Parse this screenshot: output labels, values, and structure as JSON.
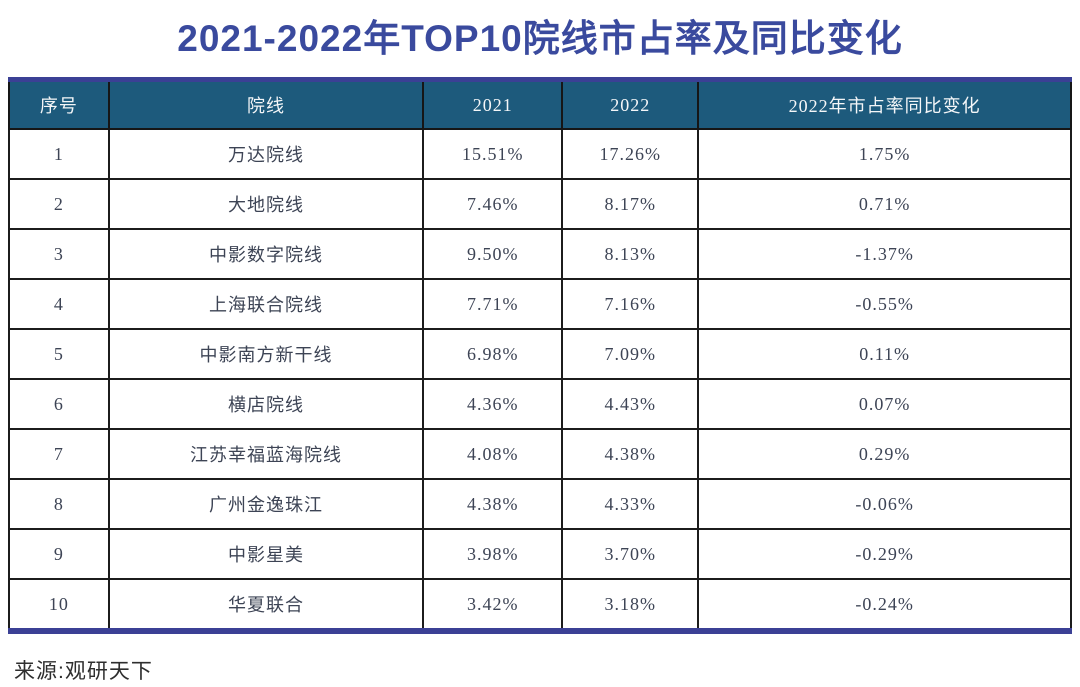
{
  "page": {
    "title": "2021-2022年TOP10院线市占率及同比变化",
    "source_label": "来源:观研天下"
  },
  "colors": {
    "title_blue": "#3a4a9e",
    "accent_navy": "#3b4095",
    "header_bg": "#1d5a7c",
    "header_text": "#f4f6f8",
    "body_text": "#3d4455",
    "grid_border": "#1c1c1c",
    "background": "#ffffff"
  },
  "chart_data": {
    "type": "table",
    "title": "2021-2022年TOP10院线市占率及同比变化",
    "columns": [
      "序号",
      "院线",
      "2021",
      "2022",
      "2022年市占率同比变化"
    ],
    "column_widths_pct": [
      9.4,
      29.6,
      13.1,
      12.8,
      35.1
    ],
    "rows": [
      [
        "1",
        "万达院线",
        "15.51%",
        "17.26%",
        "1.75%"
      ],
      [
        "2",
        "大地院线",
        "7.46%",
        "8.17%",
        "0.71%"
      ],
      [
        "3",
        "中影数字院线",
        "9.50%",
        "8.13%",
        "-1.37%"
      ],
      [
        "4",
        "上海联合院线",
        "7.71%",
        "7.16%",
        "-0.55%"
      ],
      [
        "5",
        "中影南方新干线",
        "6.98%",
        "7.09%",
        "0.11%"
      ],
      [
        "6",
        "横店院线",
        "4.36%",
        "4.43%",
        "0.07%"
      ],
      [
        "7",
        "江苏幸福蓝海院线",
        "4.08%",
        "4.38%",
        "0.29%"
      ],
      [
        "8",
        "广州金逸珠江",
        "4.38%",
        "4.33%",
        "-0.06%"
      ],
      [
        "9",
        "中影星美",
        "3.98%",
        "3.70%",
        "-0.29%"
      ],
      [
        "10",
        "华夏联合",
        "3.42%",
        "3.18%",
        "-0.24%"
      ]
    ],
    "source": "来源:观研天下",
    "layout": {
      "grid": "on",
      "header_position": "top"
    }
  }
}
